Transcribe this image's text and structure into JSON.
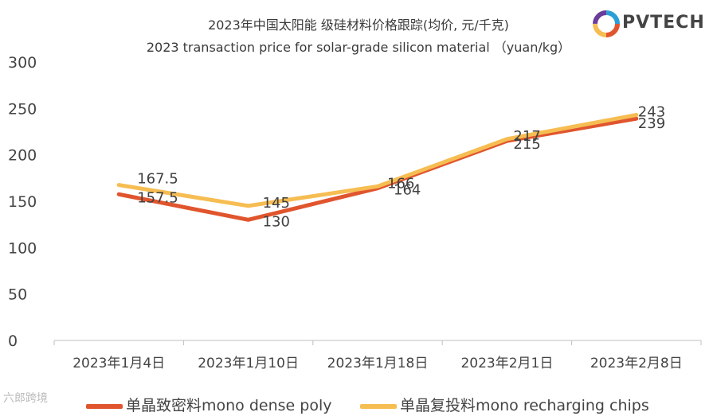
{
  "header": {
    "title_cn": "2023年中国太阳能 级硅材料价格跟踪(均价,  元/千克)",
    "title_en": "2023 transaction price for solar-grade silicon material  （yuan/kg）"
  },
  "logo": {
    "text": "PVTECH"
  },
  "watermark": {
    "text": "六郎跨境"
  },
  "colors": {
    "series1": "#e0552d",
    "series2": "#f6bd52",
    "axis": "#bfbfbf",
    "text": "#444444"
  },
  "chart_data": {
    "type": "line",
    "categories": [
      "2023年1月4日",
      "2023年1月10日",
      "2023年1月18日",
      "2023年2月1日",
      "2023年2月8日"
    ],
    "ylim": [
      0,
      300
    ],
    "yticks": [
      0,
      50,
      100,
      150,
      200,
      250,
      300
    ],
    "grid": false,
    "legend": "bottom",
    "series": [
      {
        "name": "单晶致密料mono dense poly",
        "values": [
          157.5,
          130,
          164,
          215,
          239
        ],
        "labels": [
          "157.5",
          "130",
          "164",
          "215",
          "239"
        ]
      },
      {
        "name": "单晶复投料mono recharging chips",
        "values": [
          167.5,
          145,
          166,
          217,
          243
        ],
        "labels": [
          "167.5",
          "145",
          "166",
          "217",
          "243"
        ]
      }
    ]
  }
}
